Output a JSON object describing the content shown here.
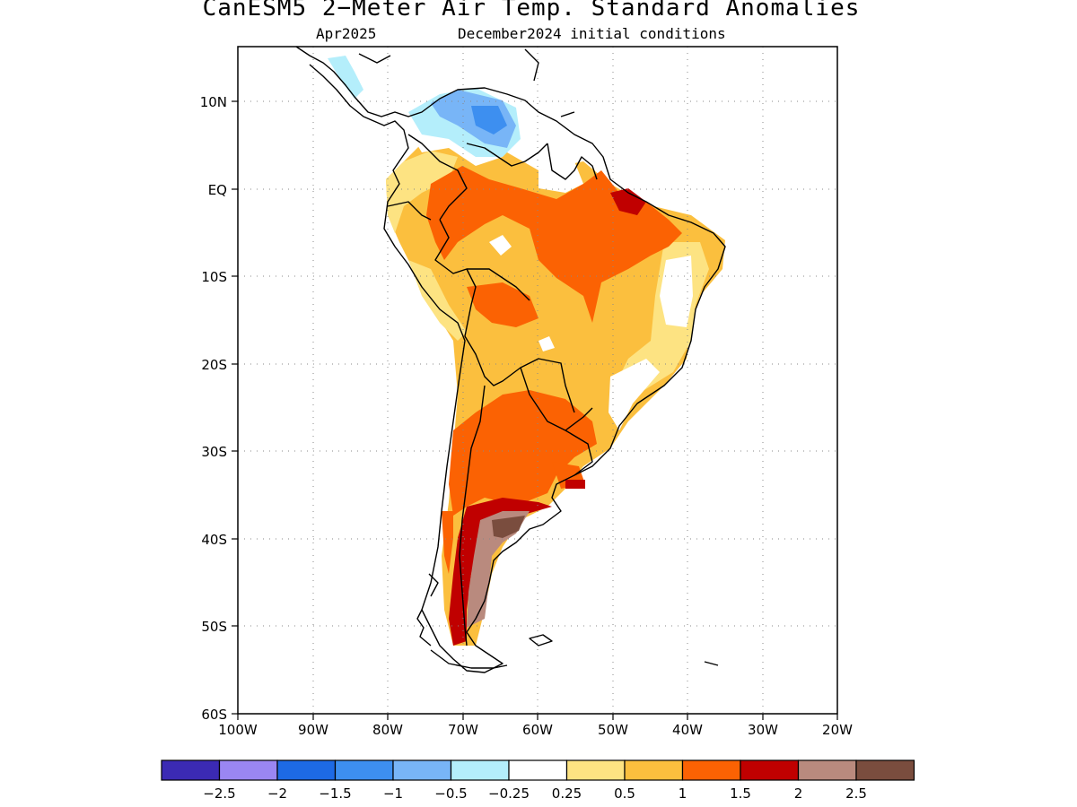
{
  "title": "CanESM5 2−Meter Air Temp. Standard Anomalies",
  "subtitle_left": "Apr2025",
  "subtitle_right": "December2024 initial conditions",
  "map": {
    "lat_labels": [
      "10N",
      "EQ",
      "10S",
      "20S",
      "30S",
      "40S",
      "50S",
      "60S"
    ],
    "lon_labels": [
      "100W",
      "90W",
      "80W",
      "70W",
      "60W",
      "50W",
      "40W",
      "30W",
      "20W"
    ],
    "lat_range": [
      -60,
      15
    ],
    "lon_range": [
      -100,
      -20
    ],
    "gridlines": "dotted"
  },
  "legend": {
    "colors": [
      "#3b2ab4",
      "#9a86f2",
      "#1d6ae5",
      "#3d8ff0",
      "#78b5f7",
      "#b4eefb",
      "#ffffff",
      "#fde382",
      "#fbbf3e",
      "#fb6203",
      "#c00000",
      "#b98a7e",
      "#7a4d3e"
    ],
    "labels": [
      "−2.5",
      "−2",
      "−1.5",
      "−1",
      "−0.5",
      "−0.25",
      "0.25",
      "0.5",
      "1",
      "1.5",
      "2",
      "2.5"
    ]
  }
}
